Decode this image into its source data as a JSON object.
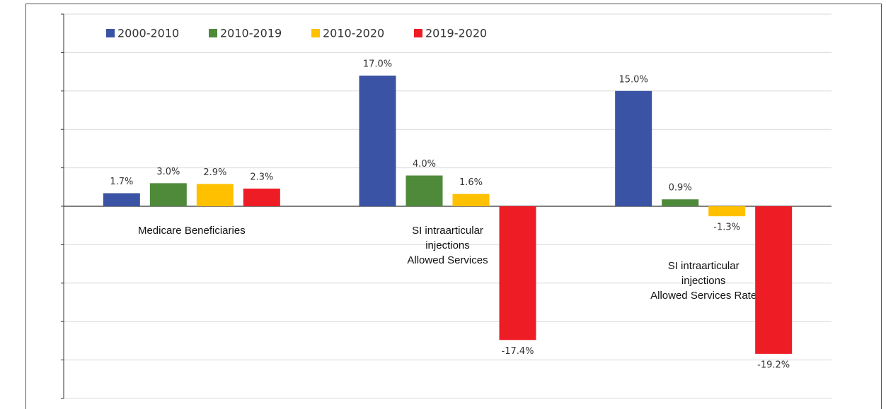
{
  "chart_data": {
    "type": "bar",
    "categories": [
      [
        "Medicare Beneficiaries"
      ],
      [
        "SI intraarticular",
        "injections",
        "Allowed Services"
      ],
      [
        "SI intraarticular",
        "injections",
        "Allowed Services Rate"
      ]
    ],
    "series": [
      {
        "name": "2000-2010",
        "color": "#3a53a4",
        "values": [
          1.7,
          17.0,
          15.0
        ],
        "value_labels": [
          "1.7%",
          "17.0%",
          "15.0%"
        ]
      },
      {
        "name": "2010-2019",
        "color": "#4e8a3a",
        "values": [
          3.0,
          4.0,
          0.9
        ],
        "value_labels": [
          "3.0%",
          "4.0%",
          "0.9%"
        ]
      },
      {
        "name": "2010-2020",
        "color": "#ffc000",
        "values": [
          2.9,
          1.6,
          -1.3
        ],
        "value_labels": [
          "2.9%",
          "1.6%",
          "-1.3%"
        ]
      },
      {
        "name": "2019-2020",
        "color": "#ee1c25",
        "values": [
          2.3,
          -17.4,
          -19.2
        ],
        "value_labels": [
          "2.3%",
          "-17.4%",
          "-19.2%"
        ]
      }
    ],
    "ylim": [
      -25,
      25
    ],
    "yticks": [
      -25,
      -20,
      -15,
      -10,
      -5,
      0,
      5,
      10,
      15,
      20,
      25
    ],
    "grid": true,
    "legend": "top-left"
  }
}
